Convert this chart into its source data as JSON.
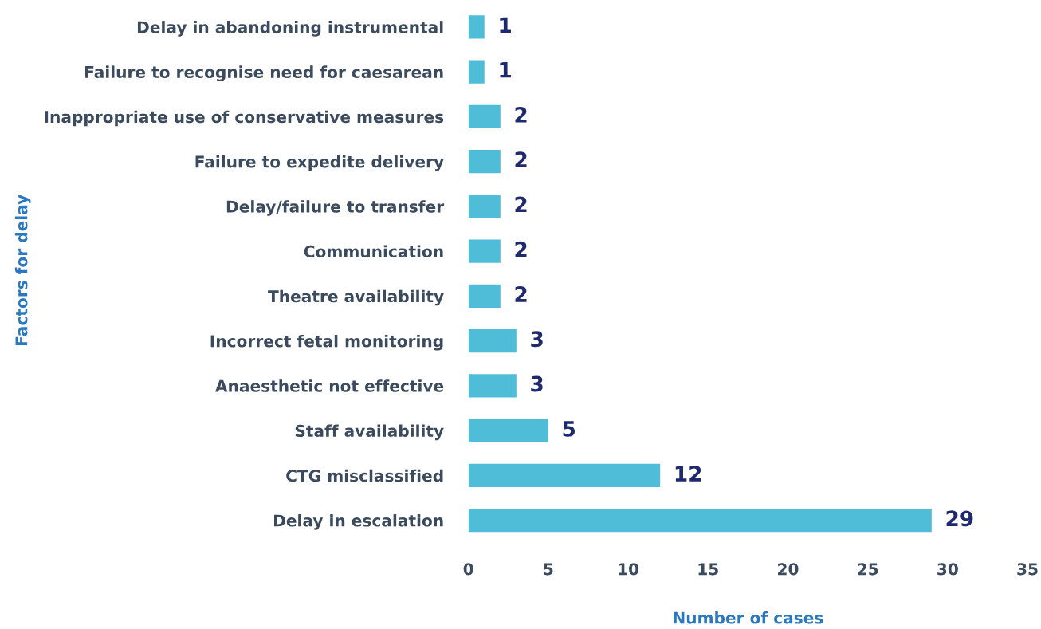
{
  "chart_data": {
    "type": "bar",
    "orientation": "horizontal",
    "xlabel": "Number of cases",
    "ylabel": "Factors for delay",
    "categories": [
      "Delay in abandoning instrumental",
      "Failure to recognise need for caesarean",
      "Inappropriate use of conservative measures",
      "Failure to expedite delivery",
      "Delay/failure to transfer",
      "Communication",
      "Theatre availability",
      "Incorrect fetal monitoring",
      "Anaesthetic not effective",
      "Staff availability",
      "CTG misclassified",
      "Delay in escalation"
    ],
    "values": [
      1,
      1,
      2,
      2,
      2,
      2,
      2,
      3,
      3,
      5,
      12,
      29
    ],
    "color": "#4fbcd8",
    "xlim": [
      0,
      35
    ],
    "xticks": [
      0,
      5,
      10,
      15,
      20,
      25,
      30,
      35
    ],
    "data_labels": true,
    "grid": false,
    "legend": false
  }
}
